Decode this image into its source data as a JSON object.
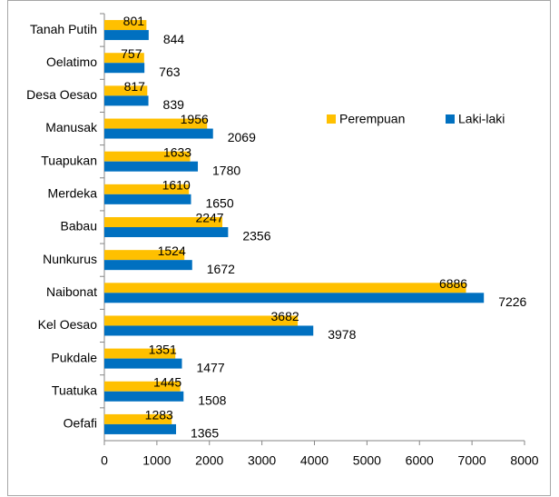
{
  "chart_data": {
    "type": "bar",
    "orientation": "horizontal",
    "categories": [
      "Tanah Putih",
      "Oelatimo",
      "Desa Oesao",
      "Manusak",
      "Tuapukan",
      "Merdeka",
      "Babau",
      "Nunkurus",
      "Naibonat",
      "Kel Oesao",
      "Pukdale",
      "Tuatuka",
      "Oefafi"
    ],
    "series": [
      {
        "name": "Perempuan",
        "color": "#ffc000",
        "values": [
          801,
          757,
          817,
          1956,
          1633,
          1610,
          2247,
          1524,
          6886,
          3682,
          1351,
          1445,
          1283
        ]
      },
      {
        "name": "Laki-laki",
        "color": "#0070c0",
        "values": [
          844,
          763,
          839,
          2069,
          1780,
          1650,
          2356,
          1672,
          7226,
          3978,
          1477,
          1508,
          1365
        ]
      }
    ],
    "xlim": [
      0,
      8000
    ],
    "xticks": [
      0,
      1000,
      2000,
      3000,
      4000,
      5000,
      6000,
      7000,
      8000
    ],
    "legend": "upper right",
    "grid": false
  }
}
